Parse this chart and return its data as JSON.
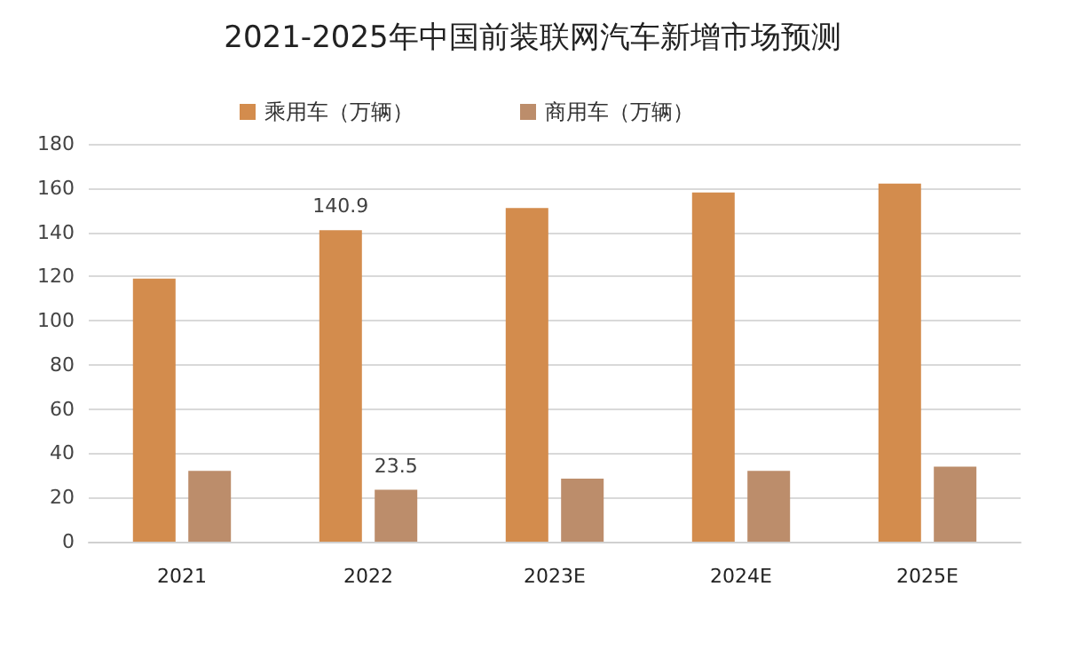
{
  "chart_data": {
    "type": "bar",
    "title": "2021-2025年中国前装联网汽车新增市场预测",
    "categories": [
      "2021",
      "2022",
      "2023E",
      "2024E",
      "2025E"
    ],
    "series": [
      {
        "name": "乘用车（万辆）",
        "color": "#d38c4d",
        "values": [
          119,
          140.9,
          151,
          158,
          162
        ],
        "value_labels": [
          null,
          "140.9",
          null,
          null,
          null
        ]
      },
      {
        "name": "商用车（万辆）",
        "color": "#bc8d6b",
        "values": [
          32,
          23.5,
          28.5,
          32,
          34
        ],
        "value_labels": [
          null,
          "23.5",
          null,
          null,
          null
        ]
      }
    ],
    "ylim": [
      0,
      180
    ],
    "yticks": [
      0,
      20,
      40,
      60,
      80,
      100,
      120,
      140,
      160,
      180
    ],
    "grid": "y",
    "legend": "top"
  }
}
